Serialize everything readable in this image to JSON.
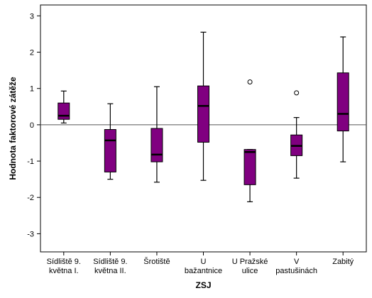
{
  "chart_data": {
    "type": "boxplot",
    "xlabel": "ZSJ",
    "ylabel": "Hodnota faktorové zátěže",
    "ylim": [
      -3.5,
      3.3
    ],
    "yticks": [
      -3,
      -2,
      -1,
      0,
      1,
      2,
      3
    ],
    "reference_line": 0,
    "grid": false,
    "box_color": "#800080",
    "categories": [
      {
        "label_lines": [
          "Sídliště 9.",
          "května I."
        ],
        "whisker_low": 0.05,
        "q1": 0.15,
        "median": 0.25,
        "q3": 0.6,
        "whisker_high": 0.93,
        "outliers": []
      },
      {
        "label_lines": [
          "Sídliště 9.",
          "května II."
        ],
        "whisker_low": -1.5,
        "q1": -1.3,
        "median": -0.43,
        "q3": -0.13,
        "whisker_high": 0.58,
        "outliers": []
      },
      {
        "label_lines": [
          "Šrotiště"
        ],
        "whisker_low": -1.58,
        "q1": -1.02,
        "median": -0.82,
        "q3": -0.1,
        "whisker_high": 1.05,
        "outliers": []
      },
      {
        "label_lines": [
          "U",
          "bažantnice"
        ],
        "whisker_low": -1.53,
        "q1": -0.48,
        "median": 0.52,
        "q3": 1.07,
        "whisker_high": 2.55,
        "outliers": []
      },
      {
        "label_lines": [
          "U Pražské",
          "ulice"
        ],
        "whisker_low": -2.12,
        "q1": -1.65,
        "median": -0.75,
        "q3": -0.68,
        "whisker_high": -0.68,
        "outliers": [
          1.18
        ]
      },
      {
        "label_lines": [
          "V",
          "pastušinách"
        ],
        "whisker_low": -1.47,
        "q1": -0.85,
        "median": -0.58,
        "q3": -0.28,
        "whisker_high": 0.2,
        "outliers": [
          0.88
        ]
      },
      {
        "label_lines": [
          "Zabitý"
        ],
        "whisker_low": -1.02,
        "q1": -0.17,
        "median": 0.3,
        "q3": 1.43,
        "whisker_high": 2.42,
        "outliers": []
      }
    ]
  }
}
